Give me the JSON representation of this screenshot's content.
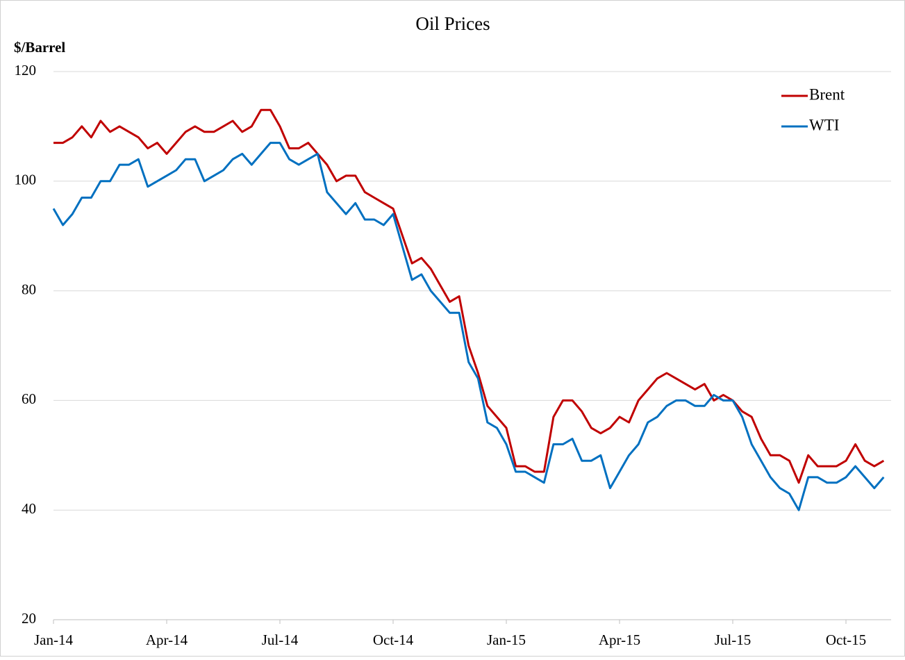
{
  "chart_data": {
    "type": "line",
    "title": "Oil Prices",
    "y_label": "$/Barrel",
    "categories": [
      "Jan-14",
      null,
      null,
      null,
      null,
      null,
      null,
      null,
      null,
      null,
      null,
      null,
      "Apr-14",
      null,
      null,
      null,
      null,
      null,
      null,
      null,
      null,
      null,
      null,
      null,
      "Jul-14",
      null,
      null,
      null,
      null,
      null,
      null,
      null,
      null,
      null,
      null,
      null,
      "Oct-14",
      null,
      null,
      null,
      null,
      null,
      null,
      null,
      null,
      null,
      null,
      null,
      "Jan-15",
      null,
      null,
      null,
      null,
      null,
      null,
      null,
      null,
      null,
      null,
      null,
      "Apr-15",
      null,
      null,
      null,
      null,
      null,
      null,
      null,
      null,
      null,
      null,
      null,
      "Jul-15",
      null,
      null,
      null,
      null,
      null,
      null,
      null,
      null,
      null,
      null,
      null,
      "Oct-15",
      null,
      null,
      null,
      null
    ],
    "series": [
      {
        "name": "Brent",
        "color": "#c00000",
        "values": [
          107,
          107,
          108,
          110,
          108,
          111,
          109,
          110,
          109,
          108,
          106,
          107,
          105,
          107,
          109,
          110,
          109,
          109,
          110,
          111,
          109,
          110,
          113,
          113,
          110,
          106,
          106,
          107,
          105,
          103,
          100,
          101,
          101,
          98,
          97,
          96,
          95,
          90,
          85,
          86,
          84,
          81,
          78,
          79,
          70,
          65,
          59,
          57,
          55,
          48,
          48,
          47,
          47,
          57,
          60,
          60,
          58,
          55,
          54,
          55,
          57,
          56,
          60,
          62,
          64,
          65,
          64,
          63,
          62,
          63,
          60,
          61,
          60,
          58,
          57,
          53,
          50,
          50,
          49,
          45,
          50,
          48,
          48,
          48,
          49,
          52,
          49,
          48,
          49
        ]
      },
      {
        "name": "WTI",
        "color": "#0070c0",
        "values": [
          95,
          92,
          94,
          97,
          97,
          100,
          100,
          103,
          103,
          104,
          99,
          100,
          101,
          102,
          104,
          104,
          100,
          101,
          102,
          104,
          105,
          103,
          105,
          107,
          107,
          104,
          103,
          104,
          105,
          98,
          96,
          94,
          96,
          93,
          93,
          92,
          94,
          88,
          82,
          83,
          80,
          78,
          76,
          76,
          67,
          64,
          56,
          55,
          52,
          47,
          47,
          46,
          45,
          52,
          52,
          53,
          49,
          49,
          50,
          44,
          47,
          50,
          52,
          56,
          57,
          59,
          60,
          60,
          59,
          59,
          61,
          60,
          60,
          57,
          52,
          49,
          46,
          44,
          43,
          40,
          46,
          46,
          45,
          45,
          46,
          48,
          46,
          44,
          46
        ]
      }
    ],
    "ylim": [
      20,
      120
    ],
    "yticks": [
      20,
      40,
      60,
      80,
      100,
      120
    ],
    "grid": true,
    "legend": "top-right"
  }
}
